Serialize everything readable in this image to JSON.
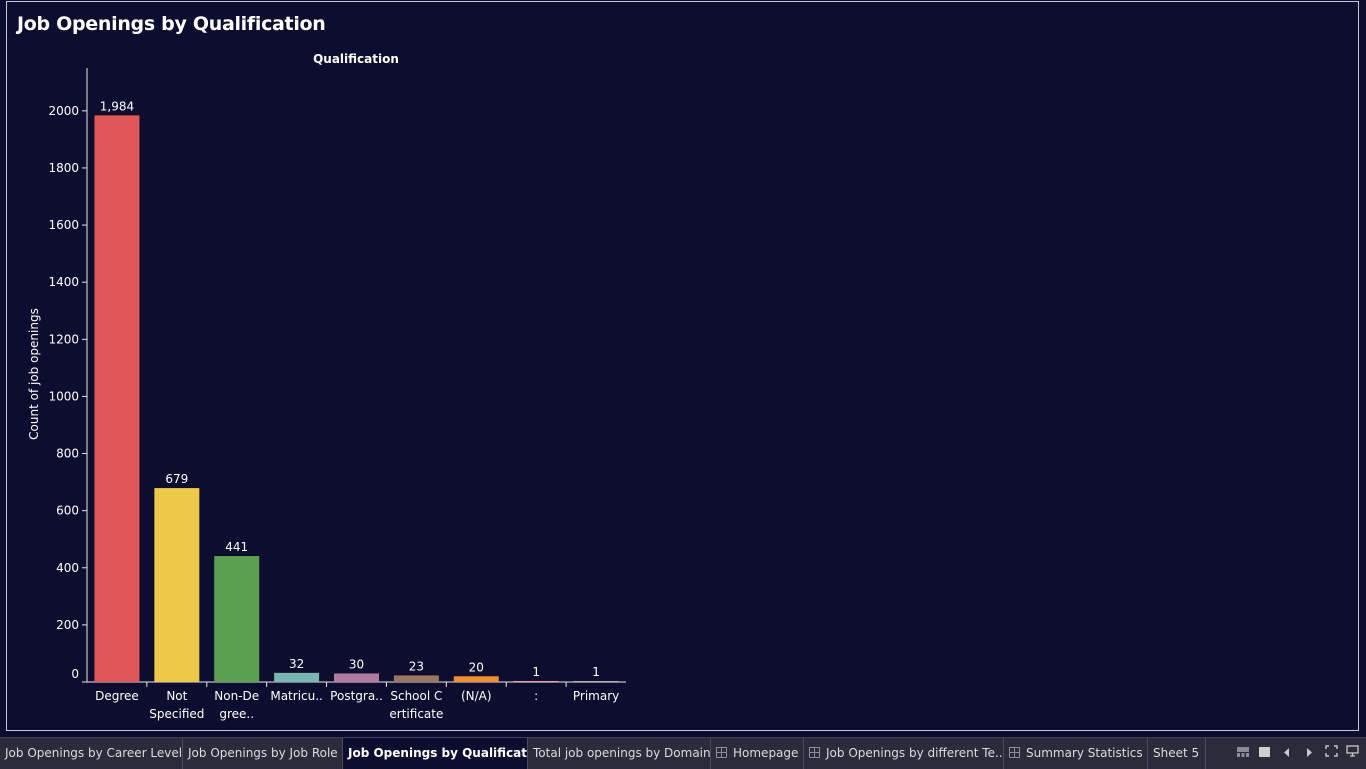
{
  "sheet": {
    "title": "Job Openings by Qualification"
  },
  "chart_data": {
    "type": "bar",
    "title": "Qualification",
    "xlabel": "",
    "ylabel": "Count of job openings",
    "ylim": [
      0,
      2150
    ],
    "yticks": [
      0,
      200,
      400,
      600,
      800,
      1000,
      1200,
      1400,
      1600,
      1800,
      2000
    ],
    "grid": false,
    "categories": [
      [
        "Degree"
      ],
      [
        "Not",
        "Specified"
      ],
      [
        "Non-De",
        "gree.."
      ],
      [
        "Matricu.."
      ],
      [
        "Postgra.."
      ],
      [
        "School C",
        "ertificate"
      ],
      [
        "(N/A)"
      ],
      [
        ":"
      ],
      [
        "Primary"
      ]
    ],
    "values": [
      1984,
      679,
      441,
      32,
      30,
      23,
      20,
      1,
      1
    ],
    "value_labels": [
      "1,984",
      "679",
      "441",
      "32",
      "30",
      "23",
      "20",
      "1",
      "1"
    ],
    "colors": [
      "#e15759",
      "#edc948",
      "#59a14f",
      "#76b7b2",
      "#b07aa1",
      "#9c755f",
      "#f28e2b",
      "#ff9da7",
      "#bab0ac"
    ]
  },
  "tabs": [
    {
      "label": "Job Openings by Career Level",
      "icon": ""
    },
    {
      "label": "Job Openings by Job Role",
      "icon": ""
    },
    {
      "label": "Job Openings by Qualification",
      "icon": "",
      "active": true
    },
    {
      "label": "Total job openings by Domain",
      "icon": ""
    },
    {
      "label": "Homepage",
      "icon": "dashboard-icon"
    },
    {
      "label": "Job Openings by different Te...",
      "icon": "dashboard-icon"
    },
    {
      "label": "Summary Statistics",
      "icon": "dashboard-icon"
    },
    {
      "label": "Sheet 5",
      "icon": ""
    }
  ],
  "controls": {
    "filmstrip_icon": "filmstrip-icon",
    "single_view_icon": "single-view-icon",
    "prev_icon": "prev-sheet-icon",
    "next_icon": "next-sheet-icon",
    "fullscreen_icon": "fullscreen-icon",
    "presentation_icon": "presentation-icon"
  }
}
